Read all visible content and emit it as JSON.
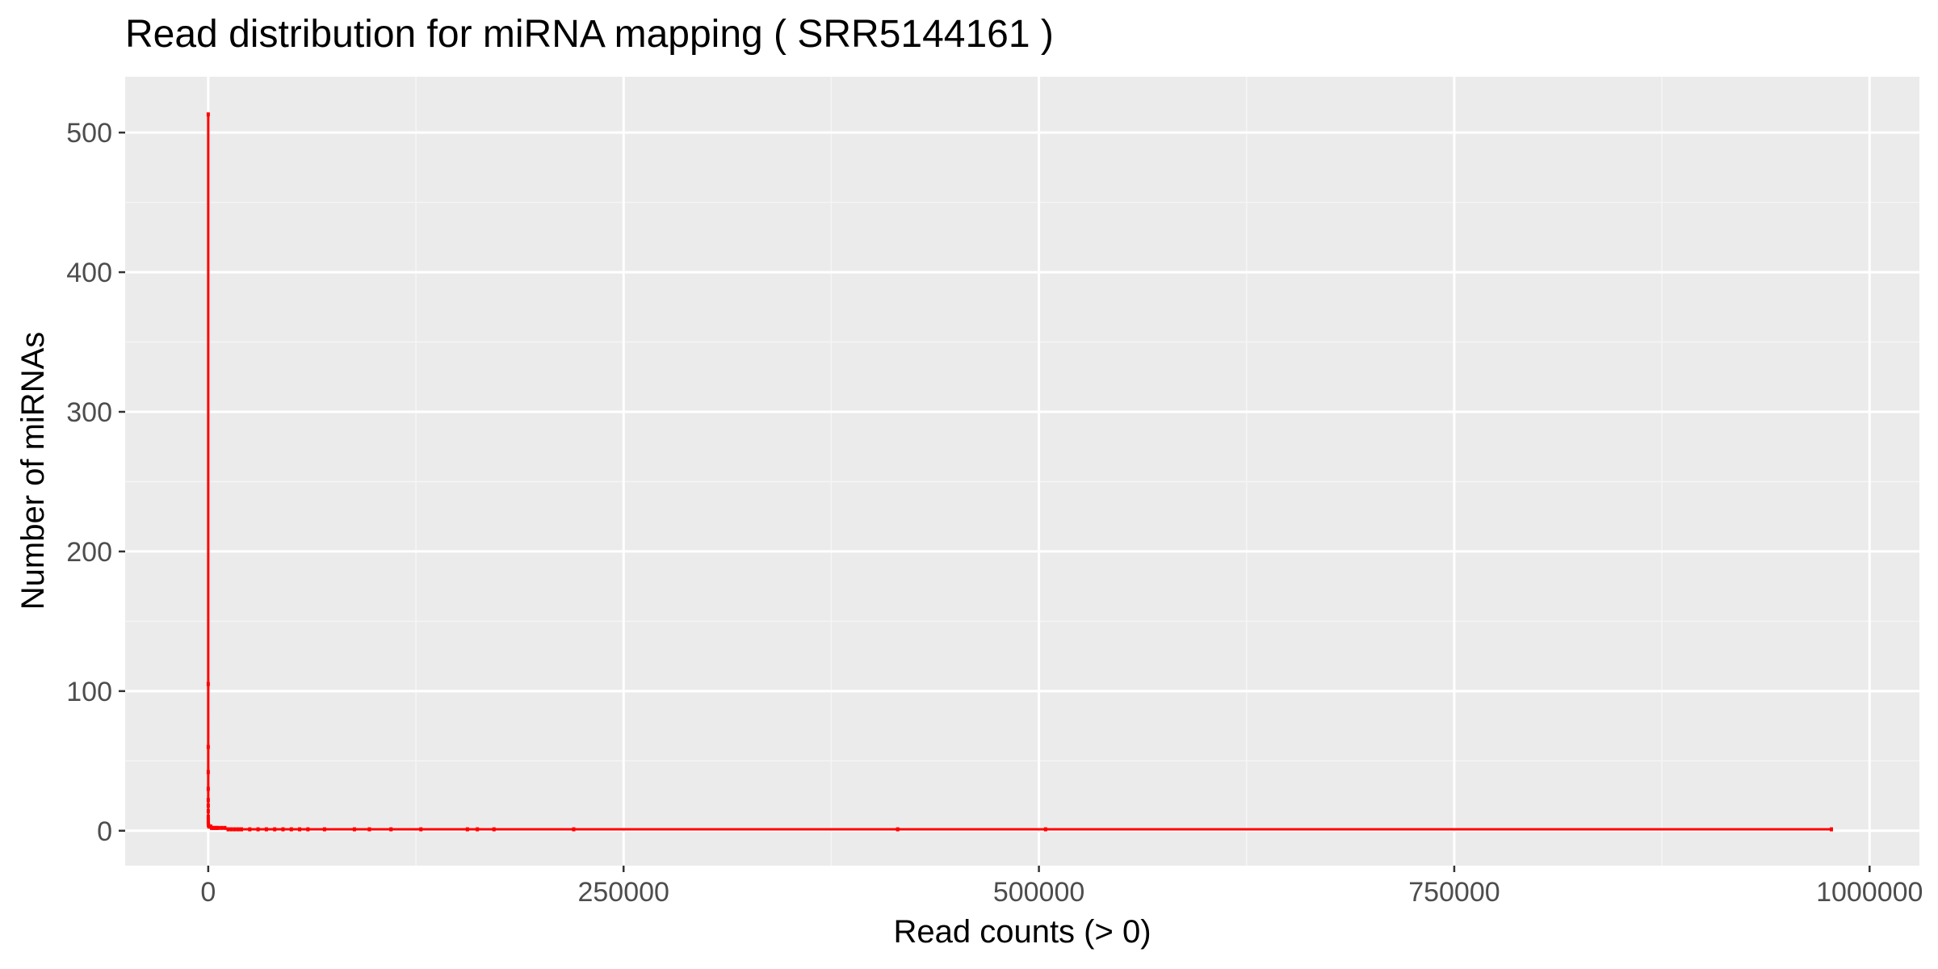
{
  "chart_data": {
    "type": "line",
    "title": "Read distribution for miRNA mapping ( SRR5144161 )",
    "xlabel": "Read counts (> 0)",
    "ylabel": "Number of miRNAs",
    "xlim": [
      -50000,
      1030000
    ],
    "ylim": [
      -25,
      540
    ],
    "x_ticks": [
      0,
      250000,
      500000,
      750000,
      1000000
    ],
    "x_tick_labels": [
      "0",
      "250000",
      "500000",
      "750000",
      "1000000"
    ],
    "y_ticks": [
      0,
      100,
      200,
      300,
      400,
      500
    ],
    "y_tick_labels": [
      "0",
      "100",
      "200",
      "300",
      "400",
      "500"
    ],
    "grid": true,
    "legend": "none",
    "series": [
      {
        "color": "#ff0000",
        "x": [
          1,
          2,
          3,
          4,
          5,
          6,
          8,
          10,
          15,
          20,
          30,
          50,
          100,
          200,
          400,
          700,
          1000,
          1500,
          2000,
          3000,
          4000,
          5000,
          6000,
          8000,
          10000,
          12000,
          14000,
          16000,
          18000,
          20000,
          25000,
          30000,
          35000,
          40000,
          45000,
          50000,
          55000,
          60000,
          70000,
          88000,
          97000,
          110000,
          128000,
          156000,
          162000,
          172000,
          220000,
          415000,
          504000,
          977000
        ],
        "y": [
          513,
          105,
          60,
          42,
          30,
          22,
          18,
          14,
          10,
          8,
          6,
          5,
          4,
          4,
          3,
          3,
          3,
          3,
          2,
          2,
          2,
          2,
          2,
          2,
          2,
          1,
          1,
          1,
          1,
          1,
          1,
          1,
          1,
          1,
          1,
          1,
          1,
          1,
          1,
          1,
          1,
          1,
          1,
          1,
          1,
          1,
          1,
          1,
          1,
          1
        ]
      }
    ]
  }
}
